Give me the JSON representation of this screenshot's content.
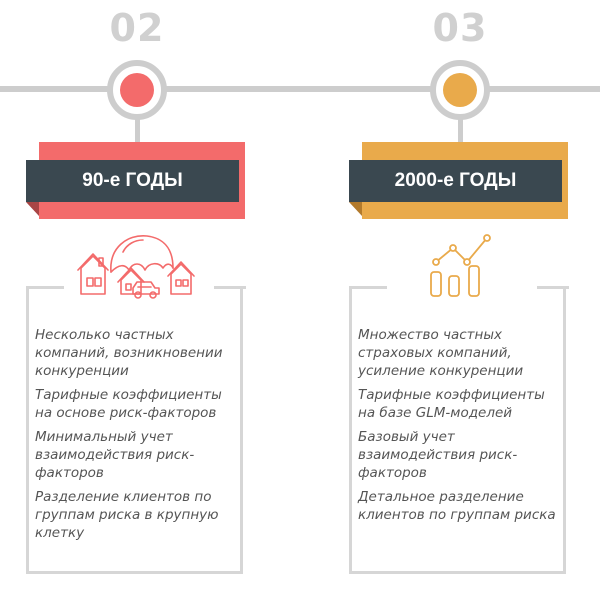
{
  "steps": [
    {
      "number": "02",
      "title": "90-е ГОДЫ",
      "accent_color": "#f36b6b",
      "icon": "house-umbrella-car-icon",
      "items": [
        "Несколько частных компаний, возникновении конкуренции",
        "Тарифные коэффициенты на основе риск-факторов",
        "Минимальный учет взаимодействия риск-факторов",
        "Разделение клиентов по группам риска в крупную клетку"
      ]
    },
    {
      "number": "03",
      "title": "2000-е ГОДЫ",
      "accent_color": "#e9aa4b",
      "icon": "growth-chart-icon",
      "items": [
        "Множество частных страховых компаний, усиление конкуренции",
        "Тарифные коэффициенты на базе GLM-моделей",
        "Базовый учет взаимодействия риск-факторов",
        "Детальное разделение клиентов по группам риска"
      ]
    }
  ],
  "colors": {
    "line": "#cdcdcd",
    "title_bar": "#3a4850",
    "number": "#d0d0d0",
    "text": "#555555"
  }
}
